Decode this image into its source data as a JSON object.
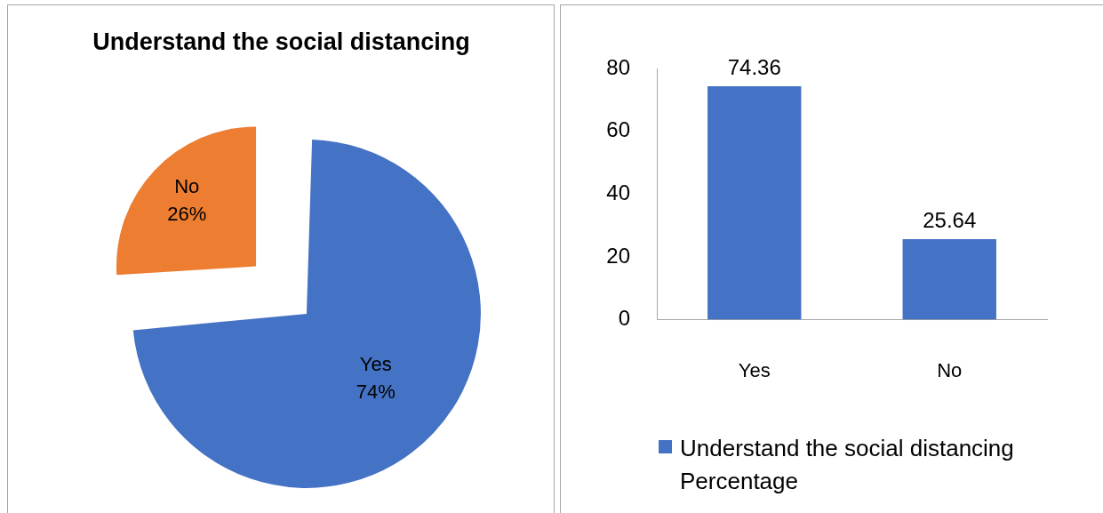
{
  "chart_data": [
    {
      "type": "pie",
      "title": "Understand the social distancing",
      "categories": [
        "Yes",
        "No"
      ],
      "values": [
        74,
        26
      ],
      "colors": [
        "#4472c4",
        "#ed7d31"
      ],
      "value_labels": [
        "74%",
        "26%"
      ]
    },
    {
      "type": "bar",
      "categories": [
        "Yes",
        "No"
      ],
      "series": [
        {
          "name": "Understand the social distancing Percentage",
          "color": "#4472c4",
          "values": [
            74.36,
            25.64
          ]
        }
      ],
      "ylim": [
        0,
        80
      ],
      "yticks": [
        0,
        20,
        40,
        60,
        80
      ],
      "data_labels": true,
      "legend": "bottom"
    }
  ]
}
